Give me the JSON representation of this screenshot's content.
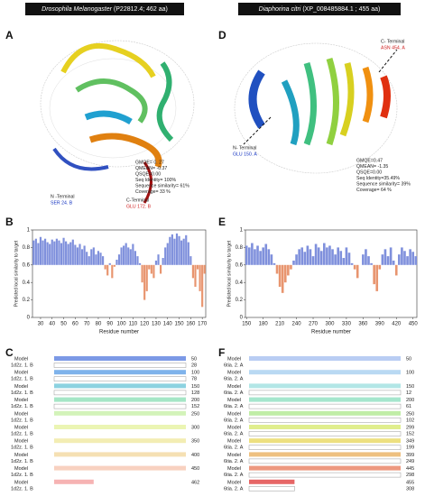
{
  "headers": [
    {
      "species": "Drosophila Melanogaster",
      "info": "(P22812.4; 462 aa)"
    },
    {
      "species": "Diaphorina citri",
      "info": "(XP_008485884.1 ; 455 aa)"
    }
  ],
  "panels": {
    "a": "A",
    "b": "B",
    "c": "C",
    "d": "D",
    "e": "E",
    "f": "F"
  },
  "structure_a": {
    "n_term": "N -Terminal",
    "n_res": "SER 24. B",
    "c_term": "C-Terminal",
    "c_res": "GLU 172. B",
    "stats": [
      "GMQE= 0. 27",
      "QMEAN= -0.37",
      "QSQE=0.00",
      "Seq Identity= 100%",
      "Sequence similarity= 61%",
      "Coverage= 33 %"
    ]
  },
  "structure_d": {
    "n_term": "N- Terminal",
    "n_res": "GLU 150. A",
    "c_term": "C- Terminal",
    "c_res": "ASN 454. A",
    "stats": [
      "GMQE=0.47",
      "QMEAN= -1.35",
      "QSQE=0.00",
      "Seq Identity=35.49%",
      "Sequence similarity= 39%",
      "Coverage= 64 %"
    ]
  },
  "chart_data": [
    {
      "type": "bar",
      "xlabel": "Residue number",
      "ylabel": "Predicted local similarity to target",
      "base": 0.6,
      "above_color": "#7f90dc",
      "below_color": "#e8956f",
      "x": [
        24,
        26,
        28,
        30,
        32,
        34,
        36,
        38,
        40,
        42,
        44,
        46,
        48,
        50,
        52,
        54,
        56,
        58,
        60,
        62,
        64,
        66,
        68,
        70,
        72,
        74,
        76,
        78,
        80,
        82,
        84,
        86,
        88,
        90,
        92,
        94,
        96,
        98,
        100,
        102,
        104,
        106,
        108,
        110,
        112,
        114,
        116,
        118,
        120,
        122,
        124,
        126,
        128,
        130,
        132,
        134,
        136,
        138,
        140,
        142,
        144,
        146,
        148,
        150,
        152,
        154,
        156,
        158,
        160,
        162,
        164,
        166,
        168,
        170,
        172
      ],
      "values": [
        0.88,
        0.9,
        0.85,
        0.92,
        0.88,
        0.9,
        0.86,
        0.84,
        0.89,
        0.87,
        0.9,
        0.88,
        0.85,
        0.91,
        0.87,
        0.84,
        0.86,
        0.89,
        0.83,
        0.8,
        0.84,
        0.78,
        0.82,
        0.75,
        0.7,
        0.78,
        0.8,
        0.72,
        0.76,
        0.74,
        0.7,
        0.55,
        0.48,
        0.62,
        0.45,
        0.58,
        0.66,
        0.72,
        0.8,
        0.82,
        0.85,
        0.8,
        0.78,
        0.84,
        0.76,
        0.7,
        0.62,
        0.4,
        0.2,
        0.3,
        0.55,
        0.5,
        0.45,
        0.65,
        0.72,
        0.5,
        0.68,
        0.8,
        0.85,
        0.92,
        0.95,
        0.9,
        0.96,
        0.93,
        0.88,
        0.9,
        0.94,
        0.86,
        0.7,
        0.45,
        0.35,
        0.55,
        0.3,
        0.12,
        0.5
      ],
      "xlim": [
        23,
        173
      ],
      "xticks": [
        30,
        40,
        50,
        60,
        70,
        80,
        90,
        100,
        110,
        120,
        130,
        140,
        150,
        160,
        170
      ],
      "ylim": [
        0,
        1
      ],
      "yticks": [
        0,
        0.2,
        0.4,
        0.6,
        0.8,
        1
      ]
    },
    {
      "type": "bar",
      "xlabel": "Residue number",
      "ylabel": "Predicted local similarity to target",
      "base": 0.6,
      "above_color": "#7f90dc",
      "below_color": "#e8956f",
      "x": [
        150,
        155,
        160,
        165,
        170,
        175,
        180,
        185,
        190,
        195,
        200,
        205,
        210,
        215,
        220,
        225,
        230,
        235,
        240,
        245,
        250,
        255,
        260,
        265,
        270,
        275,
        280,
        285,
        290,
        295,
        300,
        305,
        310,
        315,
        320,
        325,
        330,
        335,
        340,
        345,
        350,
        355,
        360,
        365,
        370,
        375,
        380,
        385,
        390,
        395,
        400,
        405,
        410,
        415,
        420,
        425,
        430,
        435,
        440,
        445,
        450,
        455
      ],
      "values": [
        0.82,
        0.8,
        0.85,
        0.78,
        0.82,
        0.76,
        0.8,
        0.84,
        0.78,
        0.72,
        0.62,
        0.5,
        0.35,
        0.28,
        0.4,
        0.48,
        0.55,
        0.65,
        0.72,
        0.78,
        0.8,
        0.75,
        0.82,
        0.78,
        0.7,
        0.84,
        0.8,
        0.76,
        0.85,
        0.8,
        0.82,
        0.78,
        0.72,
        0.8,
        0.76,
        0.68,
        0.8,
        0.74,
        0.62,
        0.55,
        0.45,
        0.6,
        0.72,
        0.78,
        0.7,
        0.62,
        0.38,
        0.3,
        0.55,
        0.72,
        0.78,
        0.7,
        0.8,
        0.65,
        0.48,
        0.72,
        0.8,
        0.76,
        0.7,
        0.78,
        0.75,
        0.7
      ],
      "xlim": [
        148,
        457
      ],
      "xticks": [
        150,
        180,
        210,
        240,
        270,
        300,
        330,
        360,
        390,
        420,
        450
      ],
      "ylim": [
        0,
        1
      ],
      "yticks": [
        0,
        0.2,
        0.4,
        0.6,
        0.8,
        1
      ]
    }
  ],
  "alignment_c": {
    "model": "Model",
    "template": "1d2z. 1. B",
    "rows": [
      {
        "model_end": 50,
        "template_end": 28,
        "color": "#5b7fe0"
      },
      {
        "model_end": 100,
        "template_end": 78,
        "color": "#5fa0e6"
      },
      {
        "model_end": 150,
        "template_end": 128,
        "color": "#6fc7d8"
      },
      {
        "model_end": 200,
        "template_end": 152,
        "color": "#8fe0b8"
      },
      {
        "model_end": 250,
        "color": "#c8f0a8"
      },
      {
        "model_end": 300,
        "color": "#e6f2a0"
      },
      {
        "model_end": 350,
        "color": "#f0e8a0"
      },
      {
        "model_end": 400,
        "color": "#f3d8a0"
      },
      {
        "model_end": 450,
        "color": "#f6c6b0"
      },
      {
        "model_end": 462,
        "color": "#f4a0a0"
      }
    ]
  },
  "alignment_f": {
    "model": "Model",
    "template": "6tia. 2. A",
    "rows": [
      {
        "model_end": 50,
        "color": "#a8c0f0"
      },
      {
        "model_end": 100,
        "color": "#a8d0f0"
      },
      {
        "model_end": 150,
        "template_end": 12,
        "color": "#9fe0e0"
      },
      {
        "model_end": 200,
        "template_end": 61,
        "color": "#8fe0c0"
      },
      {
        "model_end": 250,
        "template_end": 102,
        "color": "#b0e890"
      },
      {
        "model_end": 299,
        "template_end": 152,
        "color": "#d8ea70"
      },
      {
        "model_end": 349,
        "template_end": 199,
        "color": "#e8d860"
      },
      {
        "model_end": 399,
        "template_end": 249,
        "color": "#eab060"
      },
      {
        "model_end": 445,
        "template_end": 298,
        "color": "#e88060"
      },
      {
        "model_end": 455,
        "template_end": 308,
        "color": "#e04040"
      }
    ]
  }
}
